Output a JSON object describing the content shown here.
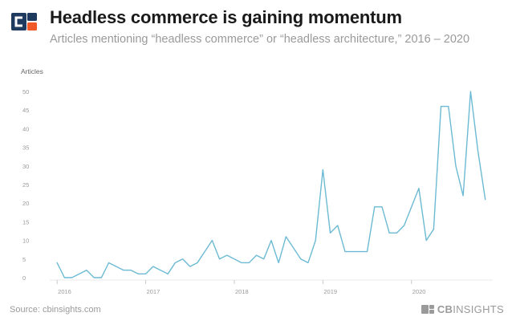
{
  "header": {
    "title": "Headless commerce is gaining momentum",
    "subtitle": "Articles mentioning “headless commerce” or “headless architecture,” 2016 – 2020"
  },
  "footer": {
    "source": "Source: cbinsights.com",
    "brand_bold": "CB",
    "brand_rest": "INSIGHTS"
  },
  "icons": {
    "logo": "cb-insights-logo-icon",
    "brand_mark": "cb-insights-mark-icon"
  },
  "colors": {
    "line": "#6cbad3",
    "logo_dark": "#1e3a5f",
    "logo_orange": "#f05a28",
    "logo_light": "#ffffff",
    "grid": "#e8e8e8",
    "axis_text": "#9a9a9a"
  },
  "chart_data": {
    "type": "line",
    "ylabel": "Articles",
    "ylim": [
      0,
      50
    ],
    "yticks": [
      0,
      5,
      10,
      15,
      20,
      25,
      30,
      35,
      40,
      45,
      50
    ],
    "xlim": [
      2015.917,
      2020.917
    ],
    "xticks": [
      {
        "value": 2016,
        "label": "2016"
      },
      {
        "value": 2017,
        "label": "2017"
      },
      {
        "value": 2018,
        "label": "2018"
      },
      {
        "value": 2019,
        "label": "2019"
      },
      {
        "value": 2020,
        "label": "2020"
      }
    ],
    "grid": false,
    "series": [
      {
        "x": [
          2016.0,
          2016.083,
          2016.167,
          2016.25,
          2016.333,
          2016.417,
          2016.5,
          2016.583,
          2016.667,
          2016.75,
          2016.833,
          2016.917,
          2017.0,
          2017.083,
          2017.167,
          2017.25,
          2017.333,
          2017.417,
          2017.5,
          2017.583,
          2017.667,
          2017.75,
          2017.833,
          2017.917,
          2018.0,
          2018.083,
          2018.167,
          2018.25,
          2018.333,
          2018.417,
          2018.5,
          2018.583,
          2018.667,
          2018.75,
          2018.833,
          2018.917,
          2019.0,
          2019.083,
          2019.167,
          2019.25,
          2019.333,
          2019.417,
          2019.5,
          2019.583,
          2019.667,
          2019.75,
          2019.833,
          2019.917,
          2020.0,
          2020.083,
          2020.167,
          2020.25,
          2020.333,
          2020.417,
          2020.5,
          2020.583,
          2020.667,
          2020.75,
          2020.833
        ],
        "y": [
          4,
          0,
          0,
          1,
          2,
          0,
          0,
          4,
          3,
          2,
          2,
          1,
          1,
          3,
          2,
          1,
          4,
          5,
          3,
          4,
          7,
          10,
          5,
          6,
          5,
          4,
          4,
          6,
          5,
          10,
          4,
          11,
          8,
          5,
          4,
          10,
          29,
          12,
          14,
          7,
          7,
          7,
          7,
          19,
          19,
          12,
          12,
          14,
          19,
          24,
          10,
          13,
          46,
          46,
          30,
          22,
          50,
          34,
          21
        ]
      }
    ]
  }
}
